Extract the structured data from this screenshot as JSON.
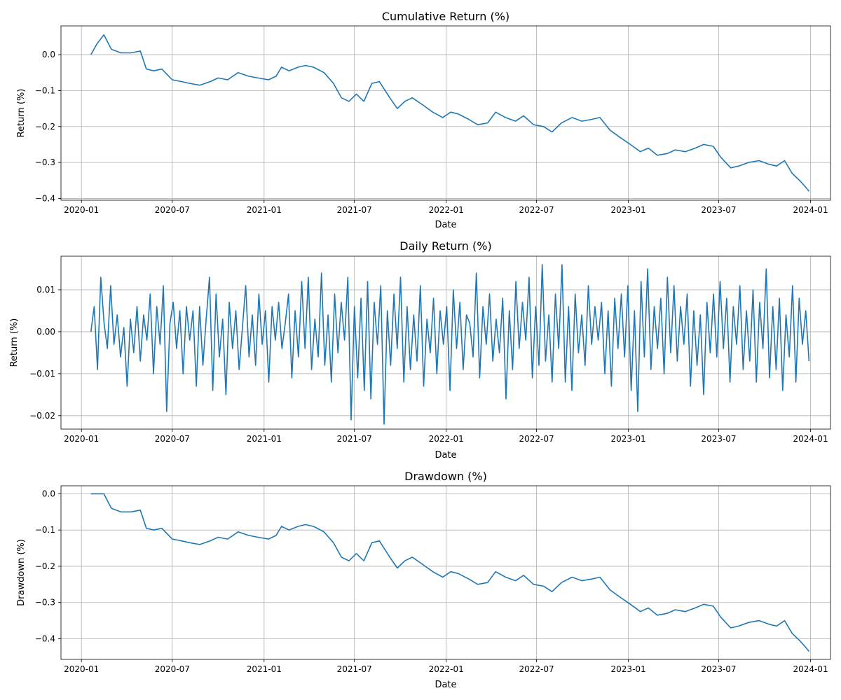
{
  "chart_data": [
    {
      "type": "line",
      "title": "Cumulative Return (%)",
      "xlabel": "Date",
      "ylabel": "Return (%)",
      "xlim": [
        "2019-11-21",
        "2024-02-10"
      ],
      "ylim": [
        -0.405,
        0.08
      ],
      "yticks": [
        -0.4,
        -0.3,
        -0.2,
        -0.1,
        0.0
      ],
      "ytick_labels": [
        "−0.4",
        "−0.3",
        "−0.2",
        "−0.1",
        "0.0"
      ],
      "xticks": [
        "2020-01-01",
        "2020-07-01",
        "2021-01-01",
        "2021-07-01",
        "2022-01-01",
        "2022-07-01",
        "2023-01-01",
        "2023-07-01",
        "2024-01-01"
      ],
      "xtick_labels": [
        "2020-01",
        "2020-07",
        "2021-01",
        "2021-07",
        "2022-01",
        "2022-07",
        "2023-01",
        "2023-07",
        "2024-01"
      ],
      "grid": true,
      "series": [
        {
          "color": "#1f77b4",
          "x": [
            "2020-01-20",
            "2020-02-01",
            "2020-02-15",
            "2020-03-01",
            "2020-03-20",
            "2020-04-10",
            "2020-04-28",
            "2020-05-10",
            "2020-05-25",
            "2020-06-10",
            "2020-07-01",
            "2020-07-20",
            "2020-08-05",
            "2020-08-25",
            "2020-09-15",
            "2020-10-01",
            "2020-10-20",
            "2020-11-10",
            "2020-12-01",
            "2020-12-20",
            "2021-01-10",
            "2021-01-25",
            "2021-02-05",
            "2021-02-20",
            "2021-03-10",
            "2021-03-25",
            "2021-04-10",
            "2021-05-01",
            "2021-05-20",
            "2021-06-05",
            "2021-06-20",
            "2021-07-05",
            "2021-07-20",
            "2021-08-05",
            "2021-08-20",
            "2021-09-10",
            "2021-09-25",
            "2021-10-10",
            "2021-10-25",
            "2021-11-15",
            "2021-12-05",
            "2021-12-25",
            "2022-01-10",
            "2022-01-25",
            "2022-02-15",
            "2022-03-05",
            "2022-03-25",
            "2022-04-10",
            "2022-04-30",
            "2022-05-20",
            "2022-06-05",
            "2022-06-25",
            "2022-07-15",
            "2022-08-01",
            "2022-08-20",
            "2022-09-10",
            "2022-09-30",
            "2022-10-20",
            "2022-11-05",
            "2022-11-25",
            "2022-12-15",
            "2023-01-05",
            "2023-01-25",
            "2023-02-10",
            "2023-02-28",
            "2023-03-20",
            "2023-04-05",
            "2023-04-25",
            "2023-05-15",
            "2023-06-01",
            "2023-06-20",
            "2023-07-05",
            "2023-07-25",
            "2023-08-10",
            "2023-08-30",
            "2023-09-20",
            "2023-10-10",
            "2023-10-25",
            "2023-11-10",
            "2023-11-25",
            "2023-12-10",
            "2023-12-20",
            "2023-12-29"
          ],
          "values": [
            0.0,
            0.03,
            0.055,
            0.015,
            0.005,
            0.005,
            0.01,
            -0.04,
            -0.045,
            -0.04,
            -0.07,
            -0.075,
            -0.08,
            -0.085,
            -0.075,
            -0.065,
            -0.07,
            -0.05,
            -0.06,
            -0.065,
            -0.07,
            -0.06,
            -0.035,
            -0.045,
            -0.035,
            -0.03,
            -0.035,
            -0.05,
            -0.08,
            -0.12,
            -0.13,
            -0.11,
            -0.13,
            -0.08,
            -0.075,
            -0.12,
            -0.15,
            -0.13,
            -0.12,
            -0.14,
            -0.16,
            -0.175,
            -0.16,
            -0.165,
            -0.18,
            -0.195,
            -0.19,
            -0.16,
            -0.175,
            -0.185,
            -0.17,
            -0.195,
            -0.2,
            -0.215,
            -0.19,
            -0.175,
            -0.185,
            -0.18,
            -0.175,
            -0.21,
            -0.23,
            -0.25,
            -0.27,
            -0.26,
            -0.28,
            -0.275,
            -0.265,
            -0.27,
            -0.26,
            -0.25,
            -0.255,
            -0.285,
            -0.315,
            -0.31,
            -0.3,
            -0.295,
            -0.305,
            -0.31,
            -0.295,
            -0.33,
            -0.35,
            -0.365,
            -0.38
          ]
        }
      ]
    },
    {
      "type": "line",
      "title": "Daily Return (%)",
      "xlabel": "Date",
      "ylabel": "Return (%)",
      "xlim": [
        "2019-11-21",
        "2024-02-10"
      ],
      "ylim": [
        -0.0232,
        0.018
      ],
      "yticks": [
        -0.02,
        -0.01,
        0.0,
        0.01
      ],
      "ytick_labels": [
        "−0.02",
        "−0.01",
        "0.00",
        "0.01"
      ],
      "xticks": [
        "2020-01-01",
        "2020-07-01",
        "2021-01-01",
        "2021-07-01",
        "2022-01-01",
        "2022-07-01",
        "2023-01-01",
        "2023-07-01",
        "2024-01-01"
      ],
      "xtick_labels": [
        "2020-01",
        "2020-07",
        "2021-01",
        "2021-07",
        "2022-01",
        "2022-07",
        "2023-01",
        "2023-07",
        "2024-01"
      ],
      "grid": true,
      "series": [
        {
          "color": "#1f77b4",
          "start": "2020-01-20",
          "end": "2023-12-29",
          "values": [
            0.0,
            0.006,
            -0.009,
            0.013,
            0.002,
            -0.004,
            0.011,
            -0.003,
            0.004,
            -0.006,
            0.001,
            -0.013,
            0.003,
            -0.005,
            0.006,
            -0.007,
            0.004,
            -0.002,
            0.009,
            -0.01,
            0.006,
            -0.003,
            0.011,
            -0.019,
            0.002,
            0.007,
            -0.004,
            0.005,
            -0.01,
            0.006,
            -0.002,
            0.005,
            -0.013,
            0.006,
            -0.008,
            0.003,
            0.013,
            -0.014,
            0.009,
            -0.006,
            0.003,
            -0.015,
            0.007,
            -0.004,
            0.005,
            -0.009,
            0.001,
            0.011,
            -0.006,
            0.004,
            -0.008,
            0.009,
            -0.003,
            0.005,
            -0.012,
            0.006,
            -0.002,
            0.007,
            -0.004,
            0.002,
            0.009,
            -0.011,
            0.005,
            -0.006,
            0.012,
            -0.004,
            0.013,
            -0.009,
            0.003,
            -0.006,
            0.014,
            -0.008,
            0.004,
            -0.012,
            0.009,
            -0.005,
            0.007,
            -0.002,
            0.013,
            -0.021,
            0.006,
            -0.011,
            0.008,
            -0.014,
            0.012,
            -0.016,
            0.007,
            -0.003,
            0.011,
            -0.022,
            0.005,
            -0.008,
            0.009,
            -0.004,
            0.013,
            -0.012,
            0.006,
            -0.009,
            0.004,
            -0.007,
            0.011,
            -0.013,
            0.003,
            -0.005,
            0.008,
            -0.01,
            0.005,
            -0.003,
            0.006,
            -0.014,
            0.01,
            -0.004,
            0.007,
            -0.009,
            0.004,
            0.002,
            -0.006,
            0.014,
            -0.011,
            0.006,
            -0.003,
            0.009,
            -0.007,
            0.003,
            -0.005,
            0.008,
            -0.016,
            0.005,
            -0.009,
            0.012,
            -0.004,
            0.007,
            -0.002,
            0.013,
            -0.011,
            0.006,
            -0.008,
            0.016,
            -0.007,
            0.004,
            -0.012,
            0.009,
            -0.004,
            0.016,
            -0.012,
            0.006,
            -0.014,
            0.009,
            -0.005,
            0.004,
            -0.008,
            0.011,
            -0.003,
            0.006,
            -0.002,
            0.007,
            -0.01,
            0.005,
            -0.013,
            0.008,
            -0.004,
            0.009,
            -0.006,
            0.011,
            -0.014,
            0.005,
            -0.019,
            0.012,
            -0.006,
            0.015,
            -0.009,
            0.006,
            -0.004,
            0.008,
            -0.01,
            0.013,
            -0.005,
            0.011,
            -0.007,
            0.006,
            -0.003,
            0.009,
            -0.013,
            0.005,
            -0.008,
            0.004,
            -0.015,
            0.007,
            -0.005,
            0.009,
            -0.006,
            0.012,
            -0.004,
            0.008,
            -0.012,
            0.006,
            -0.003,
            0.011,
            -0.009,
            0.005,
            -0.007,
            0.01,
            -0.012,
            0.007,
            -0.004,
            0.015,
            -0.011,
            0.006,
            -0.009,
            0.008,
            -0.014,
            0.004,
            -0.006,
            0.011,
            -0.012,
            0.008,
            -0.003,
            0.005,
            -0.007
          ]
        }
      ]
    },
    {
      "type": "line",
      "title": "Drawdown (%)",
      "xlabel": "Date",
      "ylabel": "Drawdown (%)",
      "xlim": [
        "2019-11-21",
        "2024-02-10"
      ],
      "ylim": [
        -0.457,
        0.022
      ],
      "yticks": [
        -0.4,
        -0.3,
        -0.2,
        -0.1,
        0.0
      ],
      "ytick_labels": [
        "−0.4",
        "−0.3",
        "−0.2",
        "−0.1",
        "0.0"
      ],
      "xticks": [
        "2020-01-01",
        "2020-07-01",
        "2021-01-01",
        "2021-07-01",
        "2022-01-01",
        "2022-07-01",
        "2023-01-01",
        "2023-07-01",
        "2024-01-01"
      ],
      "xtick_labels": [
        "2020-01",
        "2020-07",
        "2021-01",
        "2021-07",
        "2022-01",
        "2022-07",
        "2023-01",
        "2023-07",
        "2024-01"
      ],
      "grid": true,
      "series": [
        {
          "color": "#1f77b4",
          "x": [
            "2020-01-20",
            "2020-02-01",
            "2020-02-15",
            "2020-03-01",
            "2020-03-20",
            "2020-04-10",
            "2020-04-28",
            "2020-05-10",
            "2020-05-25",
            "2020-06-10",
            "2020-07-01",
            "2020-07-20",
            "2020-08-05",
            "2020-08-25",
            "2020-09-15",
            "2020-10-01",
            "2020-10-20",
            "2020-11-10",
            "2020-12-01",
            "2020-12-20",
            "2021-01-10",
            "2021-01-25",
            "2021-02-05",
            "2021-02-20",
            "2021-03-10",
            "2021-03-25",
            "2021-04-10",
            "2021-05-01",
            "2021-05-20",
            "2021-06-05",
            "2021-06-20",
            "2021-07-05",
            "2021-07-20",
            "2021-08-05",
            "2021-08-20",
            "2021-09-10",
            "2021-09-25",
            "2021-10-10",
            "2021-10-25",
            "2021-11-15",
            "2021-12-05",
            "2021-12-25",
            "2022-01-10",
            "2022-01-25",
            "2022-02-15",
            "2022-03-05",
            "2022-03-25",
            "2022-04-10",
            "2022-04-30",
            "2022-05-20",
            "2022-06-05",
            "2022-06-25",
            "2022-07-15",
            "2022-08-01",
            "2022-08-20",
            "2022-09-10",
            "2022-09-30",
            "2022-10-20",
            "2022-11-05",
            "2022-11-25",
            "2022-12-15",
            "2023-01-05",
            "2023-01-25",
            "2023-02-10",
            "2023-02-28",
            "2023-03-20",
            "2023-04-05",
            "2023-04-25",
            "2023-05-15",
            "2023-06-01",
            "2023-06-20",
            "2023-07-05",
            "2023-07-25",
            "2023-08-10",
            "2023-08-30",
            "2023-09-20",
            "2023-10-10",
            "2023-10-25",
            "2023-11-10",
            "2023-11-25",
            "2023-12-10",
            "2023-12-20",
            "2023-12-29"
          ],
          "values": [
            0.0,
            0.0,
            0.0,
            -0.04,
            -0.05,
            -0.05,
            -0.045,
            -0.095,
            -0.1,
            -0.095,
            -0.125,
            -0.13,
            -0.135,
            -0.14,
            -0.13,
            -0.12,
            -0.125,
            -0.105,
            -0.115,
            -0.12,
            -0.125,
            -0.115,
            -0.09,
            -0.1,
            -0.09,
            -0.085,
            -0.09,
            -0.105,
            -0.135,
            -0.175,
            -0.185,
            -0.165,
            -0.185,
            -0.135,
            -0.13,
            -0.175,
            -0.205,
            -0.185,
            -0.175,
            -0.195,
            -0.215,
            -0.23,
            -0.215,
            -0.22,
            -0.235,
            -0.25,
            -0.245,
            -0.215,
            -0.23,
            -0.24,
            -0.225,
            -0.25,
            -0.255,
            -0.27,
            -0.245,
            -0.23,
            -0.24,
            -0.235,
            -0.23,
            -0.265,
            -0.285,
            -0.305,
            -0.325,
            -0.315,
            -0.335,
            -0.33,
            -0.32,
            -0.325,
            -0.315,
            -0.305,
            -0.31,
            -0.34,
            -0.37,
            -0.365,
            -0.355,
            -0.35,
            -0.36,
            -0.365,
            -0.35,
            -0.385,
            -0.405,
            -0.42,
            -0.435
          ]
        }
      ]
    }
  ]
}
